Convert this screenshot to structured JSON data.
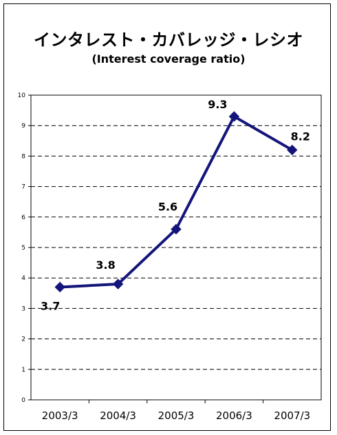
{
  "chart_data": {
    "type": "line",
    "title": "インタレスト・カバレッジ・レシオ",
    "subtitle": "(Interest coverage ratio)",
    "categories": [
      "2003/3",
      "2004/3",
      "2005/3",
      "2006/3",
      "2007/3"
    ],
    "series": [
      {
        "values": [
          3.7,
          3.8,
          5.6,
          9.3,
          8.2
        ],
        "color": "#14157a"
      }
    ],
    "data_labels": [
      "3.7",
      "3.8",
      "5.6",
      "9.3",
      "8.2"
    ],
    "ylim": [
      0,
      10
    ],
    "yticks": [
      0,
      1,
      2,
      3,
      4,
      5,
      6,
      7,
      8,
      9,
      10
    ],
    "grid": "horizontal-dashed",
    "marker": "diamond"
  }
}
